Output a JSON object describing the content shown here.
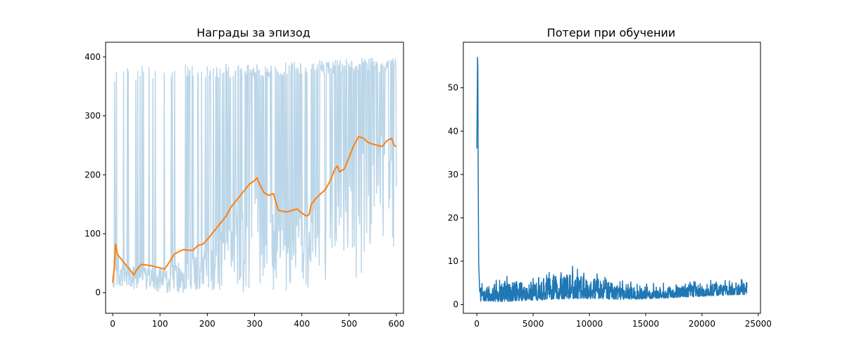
{
  "colors": {
    "raw": "#1f77b4",
    "raw_opacity": 0.3,
    "smooth": "#ff7f0e",
    "loss": "#1f77b4"
  },
  "chart_data": [
    {
      "type": "line",
      "title": "Награды за эпизод",
      "xlabel": "",
      "ylabel": "",
      "xlim": [
        -15,
        615
      ],
      "ylim": [
        -35,
        425
      ],
      "x_ticks": [
        {
          "value": 0,
          "label": "0"
        },
        {
          "value": 100,
          "label": "100"
        },
        {
          "value": 200,
          "label": "200"
        },
        {
          "value": 300,
          "label": "300"
        },
        {
          "value": 400,
          "label": "400"
        },
        {
          "value": 500,
          "label": "500"
        },
        {
          "value": 600,
          "label": "600"
        }
      ],
      "y_ticks": [
        {
          "value": 0,
          "label": "0"
        },
        {
          "value": 100,
          "label": "100"
        },
        {
          "value": 200,
          "label": "200"
        },
        {
          "value": 300,
          "label": "300"
        },
        {
          "value": 400,
          "label": "400"
        }
      ],
      "grid": false,
      "series": [
        {
          "role": "raw",
          "episodes": 600,
          "approx_envelope": {
            "x": [
              0,
              100,
              200,
              300,
              400,
              500,
              600
            ],
            "low": [
              10,
              0,
              -5,
              0,
              5,
              15,
              60
            ],
            "high": [
              383,
              388,
              390,
              388,
              394,
              398,
              400
            ]
          }
        },
        {
          "role": "moving-average",
          "x": [
            0,
            3,
            6,
            10,
            20,
            30,
            40,
            45,
            50,
            60,
            80,
            100,
            110,
            120,
            130,
            140,
            150,
            160,
            170,
            180,
            190,
            200,
            210,
            220,
            230,
            240,
            250,
            260,
            270,
            280,
            290,
            300,
            305,
            310,
            320,
            330,
            340,
            350,
            360,
            370,
            380,
            390,
            400,
            410,
            415,
            420,
            430,
            440,
            450,
            460,
            470,
            475,
            480,
            490,
            500,
            510,
            520,
            530,
            540,
            550,
            560,
            570,
            580,
            590,
            595,
            600
          ],
          "y": [
            17,
            40,
            82,
            65,
            55,
            45,
            35,
            30,
            38,
            48,
            46,
            42,
            40,
            52,
            65,
            70,
            73,
            72,
            72,
            80,
            82,
            90,
            100,
            110,
            120,
            130,
            145,
            155,
            165,
            175,
            185,
            190,
            195,
            185,
            170,
            165,
            168,
            140,
            138,
            137,
            140,
            142,
            135,
            130,
            132,
            150,
            160,
            168,
            175,
            190,
            210,
            215,
            205,
            210,
            230,
            250,
            265,
            262,
            255,
            252,
            250,
            248,
            258,
            262,
            250,
            248
          ]
        }
      ]
    },
    {
      "type": "line",
      "title": "Потери при обучении",
      "xlabel": "",
      "ylabel": "",
      "xlim": [
        -1200,
        25200
      ],
      "ylim": [
        -2,
        60.5
      ],
      "x_ticks": [
        {
          "value": 0,
          "label": "0"
        },
        {
          "value": 5000,
          "label": "5000"
        },
        {
          "value": 10000,
          "label": "10000"
        },
        {
          "value": 15000,
          "label": "15000"
        },
        {
          "value": 20000,
          "label": "20000"
        },
        {
          "value": 25000,
          "label": "25000"
        }
      ],
      "y_ticks": [
        {
          "value": 0,
          "label": "0"
        },
        {
          "value": 10,
          "label": "10"
        },
        {
          "value": 20,
          "label": "20"
        },
        {
          "value": 30,
          "label": "30"
        },
        {
          "value": 40,
          "label": "40"
        },
        {
          "value": 50,
          "label": "50"
        }
      ],
      "grid": false,
      "series": [
        {
          "role": "loss",
          "steps": 24000,
          "early_spike": {
            "x": [
              0,
              60,
              90,
              120,
              160,
              250
            ],
            "y": [
              36,
              57,
              55,
              30,
              10,
              3
            ]
          },
          "approx_envelope": {
            "x": [
              300,
              2500,
              5000,
              7500,
              10000,
              12500,
              15000,
              17500,
              20000,
              22500,
              24000
            ],
            "low": [
              0.8,
              0.7,
              1.0,
              1.3,
              1.4,
              1.2,
              1.3,
              1.6,
              1.9,
              2.2,
              2.3
            ],
            "high": [
              4.8,
              6.5,
              7.0,
              9.5,
              8.0,
              6.0,
              5.0,
              5.0,
              5.5,
              6.0,
              6.2
            ]
          }
        }
      ]
    }
  ]
}
